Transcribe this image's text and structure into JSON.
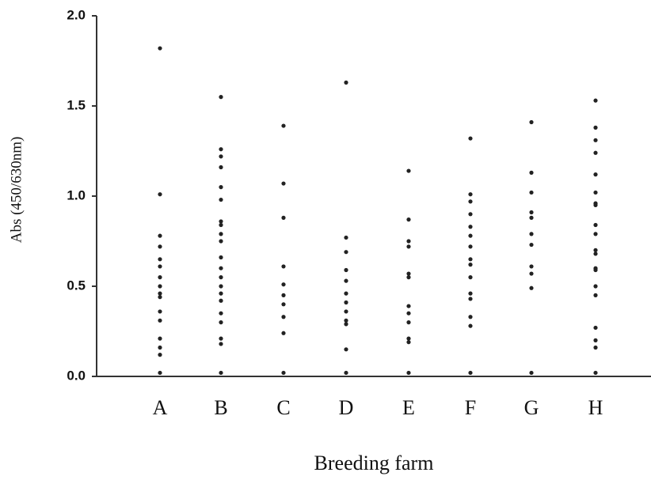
{
  "chart_data": {
    "type": "strip",
    "x_label": "Breeding farm",
    "y_label": "Abs (450/630nm)",
    "categories": [
      "A",
      "B",
      "C",
      "D",
      "E",
      "F",
      "G",
      "H"
    ],
    "values": [
      [
        1.82,
        1.01,
        0.78,
        0.72,
        0.65,
        0.61,
        0.55,
        0.5,
        0.46,
        0.44,
        0.36,
        0.31,
        0.21,
        0.16,
        0.12,
        0.02
      ],
      [
        1.55,
        1.26,
        1.22,
        1.16,
        1.05,
        0.98,
        0.86,
        0.84,
        0.79,
        0.75,
        0.66,
        0.6,
        0.55,
        0.5,
        0.46,
        0.42,
        0.35,
        0.3,
        0.21,
        0.18,
        0.02
      ],
      [
        1.39,
        1.07,
        0.88,
        0.61,
        0.51,
        0.45,
        0.4,
        0.33,
        0.24,
        0.02
      ],
      [
        1.63,
        0.77,
        0.69,
        0.59,
        0.53,
        0.46,
        0.41,
        0.36,
        0.31,
        0.29,
        0.15,
        0.02
      ],
      [
        1.14,
        0.87,
        0.75,
        0.72,
        0.57,
        0.55,
        0.39,
        0.35,
        0.3,
        0.21,
        0.19,
        0.02
      ],
      [
        1.32,
        1.01,
        0.97,
        0.9,
        0.83,
        0.78,
        0.72,
        0.65,
        0.62,
        0.55,
        0.46,
        0.43,
        0.33,
        0.28,
        0.02
      ],
      [
        1.41,
        1.13,
        1.02,
        0.91,
        0.88,
        0.79,
        0.73,
        0.61,
        0.57,
        0.49,
        0.02
      ],
      [
        1.53,
        1.38,
        1.31,
        1.24,
        1.12,
        1.02,
        0.96,
        0.95,
        0.84,
        0.79,
        0.7,
        0.68,
        0.6,
        0.59,
        0.5,
        0.45,
        0.27,
        0.2,
        0.16,
        0.02
      ]
    ],
    "color": "#222222",
    "ylim": [
      0,
      2
    ],
    "yticks": [
      {
        "value": 0,
        "label": "0.0"
      },
      0.5,
      {
        "value": 1,
        "label": "1.0"
      },
      1.5,
      {
        "value": 2,
        "label": "2.0"
      }
    ]
  }
}
